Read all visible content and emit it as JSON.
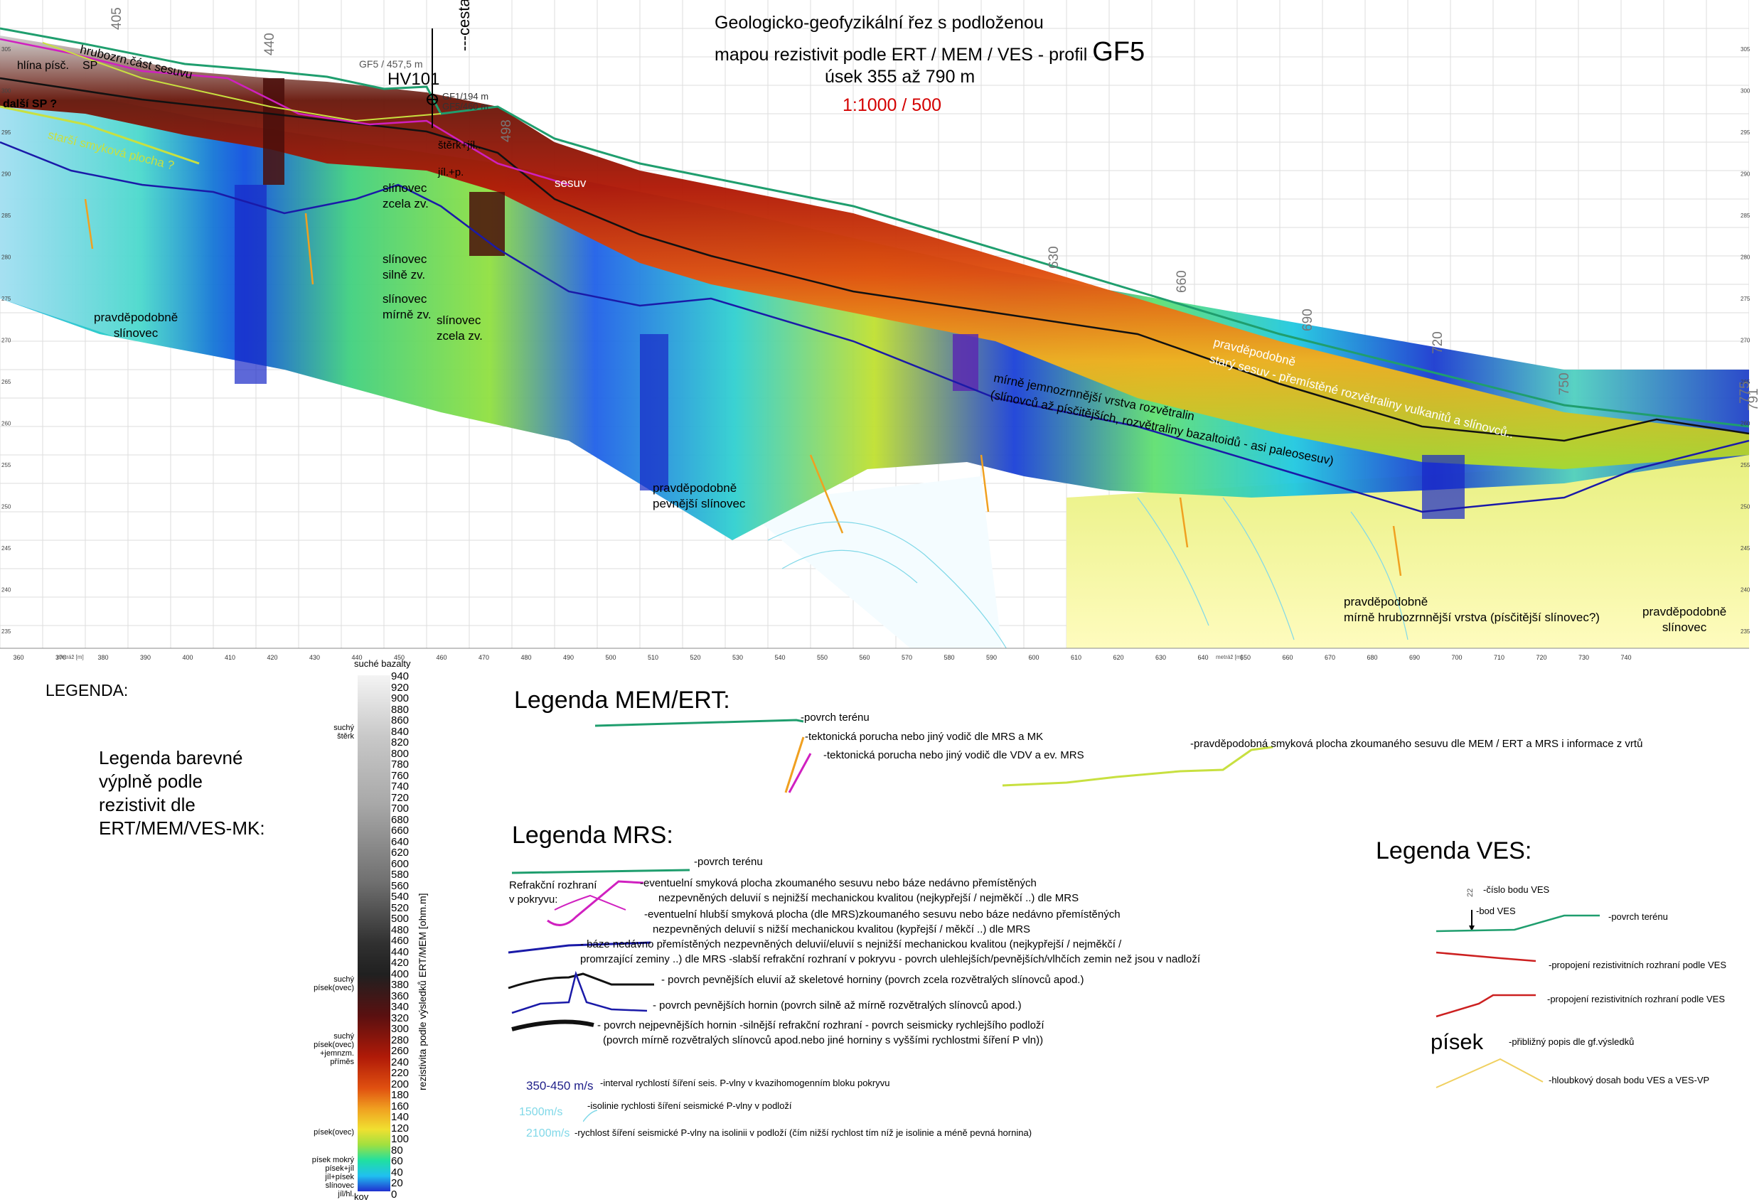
{
  "title": {
    "line1": "Geologicko-geofyzikální řez s podloženou",
    "line2": "mapou rezistivit podle ERT / MEM / VES  -  profil",
    "profile": "GF5",
    "line3": "úsek 355 až 790 m",
    "scale": "1:1000 / 500",
    "scale_color": "#d40000"
  },
  "section": {
    "x_ticks": [
      "360",
      "370",
      "380",
      "390",
      "400",
      "410",
      "420",
      "430",
      "440",
      "450",
      "460",
      "470",
      "480",
      "490",
      "500",
      "510",
      "520",
      "530",
      "540",
      "550",
      "560",
      "570",
      "580",
      "590",
      "600",
      "610",
      "620",
      "630",
      "640",
      "650",
      "660",
      "670",
      "680",
      "690",
      "700",
      "710",
      "720",
      "730",
      "740"
    ],
    "x_axis_caption_left": "metráž [m]",
    "x_axis_caption_right": "metráž [m]",
    "y_ticks": [
      "305",
      "300",
      "295",
      "290",
      "285",
      "280",
      "275",
      "270",
      "265",
      "260",
      "255",
      "250",
      "245",
      "240",
      "235"
    ],
    "y_axis_caption": "nadmořská výška [m]",
    "points": [
      "405",
      "440",
      "498",
      "630",
      "660",
      "690",
      "720",
      "750",
      "775",
      "791"
    ],
    "cesta": "---cesta",
    "well": {
      "name": "HV101",
      "upper": "GF5 / 457,5 m",
      "lower1": "GF1/194 m",
      "lower2": "GF5/460 m"
    },
    "labels": {
      "hlina": "hlína písč.",
      "sp": "SP",
      "hrubozrn": "hrubozrn.část sesuvu",
      "dalsi_sp": "další SP ?",
      "starsi": "starší smyková plocha ?",
      "sterk": "štěrk+jíl..",
      "jil": "jíl.+p.",
      "sesuv": "sesuv",
      "slin_zcela": [
        "slínovec",
        "zcela zv."
      ],
      "slin_silne": [
        "slínovec",
        "silně zv."
      ],
      "slin_mirne": [
        "slínovec",
        "mírně zv."
      ],
      "slin_zcela2": [
        "slínovec",
        "zcela zv."
      ],
      "prav_slin": [
        "pravděpodobně",
        "slínovec"
      ],
      "prav_pevnejsi": [
        "pravděpodobně",
        "pevnější slínovec"
      ],
      "jemno": [
        "mírně jemnozrnnější vrstva rozvětralin",
        "(slínovců až písčitějších, rozvětraliny bazaltoidů - asi paleosesuv)"
      ],
      "stary": [
        "pravděpodobně",
        "starý sesuv - přemístěné rozvětraliny vulkanitů a slínovců.."
      ],
      "hrubo_vrstva": [
        "pravděpodobně",
        "mírně hrubozrnnější vrstva (písčitější slínovec?)"
      ],
      "prav_slin_right": [
        "pravděpodobně",
        "slínovec"
      ]
    }
  },
  "legend_left": {
    "title": "LEGENDA:",
    "caption": [
      "Legenda barevné",
      "výplně podle",
      "rezistivit dle",
      "ERT/MEM/VES-MK:"
    ],
    "top_label": "suché bazalty",
    "scale_values": [
      "940",
      "920",
      "900",
      "880",
      "860",
      "840",
      "820",
      "800",
      "780",
      "760",
      "740",
      "720",
      "700",
      "680",
      "660",
      "640",
      "620",
      "600",
      "580",
      "560",
      "540",
      "520",
      "500",
      "480",
      "460",
      "440",
      "420",
      "400",
      "380",
      "360",
      "340",
      "320",
      "300",
      "280",
      "260",
      "240",
      "220",
      "200",
      "180",
      "160",
      "140",
      "120",
      "100",
      "80",
      "60",
      "40",
      "20",
      "0"
    ],
    "axis_label": "rezistivita podle výsledků ERT/MEM [ohm.m]",
    "bottom_label": "kov",
    "materials": [
      {
        "lines": [
          "suchý",
          "štěrk"
        ],
        "value": 850
      },
      {
        "lines": [
          "suchý",
          "písek(ovec)"
        ],
        "value": 380
      },
      {
        "lines": [
          "suchý",
          "písek(ovec)",
          "+jemnzm.",
          "příměs"
        ],
        "value": 280
      },
      {
        "lines": [
          "písek(ovec)"
        ],
        "value": 105
      },
      {
        "lines": [
          "písek mokrý",
          "písek+jíl",
          "jíl+písek",
          "slínovec",
          "jíl/hl."
        ],
        "value": 45
      }
    ]
  },
  "legend_mem": {
    "title": "Legenda MEM/ERT:",
    "items": [
      "-povrch terénu",
      "-tektonická porucha nebo jiný vodič dle MRS a MK",
      "-tektonická porucha nebo jiný vodič dle VDV a ev. MRS",
      "-pravděpodobná smyková plocha zkoumaného sesuvu dle MEM / ERT a MRS i informace z vrtů"
    ]
  },
  "legend_mrs": {
    "title": "Legenda MRS:",
    "terrain": "-povrch terénu",
    "refr_label": [
      "Refrakční rozhraní",
      "v pokryvu:"
    ],
    "items": [
      [
        "-eventuelní smyková plocha zkoumaného sesuvu nebo báze nedávno přemístěných",
        "nezpevněných deluvií s nejnižší mechanickou kvalitou (nejkypřejší / nejměkčí ..) dle MRS"
      ],
      [
        "-eventuelní hlubší smyková plocha (dle MRS)zkoumaného sesuvu nebo báze nedávno přemístěných",
        "nezpevněných deluvií s nižší mechanickou kvalitou (kypřejší / měkčí ..) dle MRS"
      ],
      [
        "- báze nedávno přemístěných nezpevněných deluvií/eluvií s nejnižší mechanickou kvalitou (nejkypřejší / nejměkčí /",
        "promrzající zeminy ..) dle MRS -slabší refrakční rozhraní v pokryvu - povrch ulehlejších/pevnějších/vlhčích zemin než jsou v nadloží"
      ],
      [
        "- povrch pevnějších eluvií až skeletové horniny (povrch zcela rozvětralých slínovců apod.)"
      ],
      [
        "- povrch pevnějších hornin (povrch silně až mírně rozvětralých slínovců apod.)"
      ],
      [
        "- povrch nejpevnějších hornin -silnější refrakční rozhraní - povrch seismicky rychlejšího podloží",
        "(povrch mírně rozvětralých slínovců apod.nebo jiné horniny s vyššími rychlostmi šíření P vln))"
      ]
    ],
    "vel_value": "350-450 m/s",
    "vel_text": "-interval rychlostí šíření seis. P-vlny v kvazihomogenním bloku pokryvu",
    "iso_value": "1500m/s",
    "iso_text": "-isolinie rychlosti šíření seismické P-vlny v podloží",
    "iso2_value": "2100m/s",
    "iso2_text": "-rychlost šíření seismické P-vlny na isolinii v podloží (čím nižší rychlost tím níž je isolinie a méně pevná hornina)"
  },
  "legend_ves": {
    "title": "Legenda VES:",
    "num": "22",
    "num_text": "-číslo bodu VES",
    "bod_text": "-bod VES",
    "terrain": "-povrch terénu",
    "rez1": "-propojení rezistivitních rozhraní podle VES",
    "rez2": "-propojení rezistivitních rozhraní podle VES",
    "pisek": "písek",
    "pisek_text": "-přibližný popis dle gf.výsledků",
    "dosah": "-hloubkový dosah bodu VES a VES-VP"
  },
  "colors": {
    "terrain_green": "#1f9e6e",
    "mrs_blue": "#1a1aa8",
    "magenta": "#d020c0",
    "orange": "#f0a020",
    "yellow_green": "#c8e040",
    "ves_red": "#cc2020",
    "velocity_blue": "#20208a",
    "isoline_cyan": "#80d8e8"
  }
}
